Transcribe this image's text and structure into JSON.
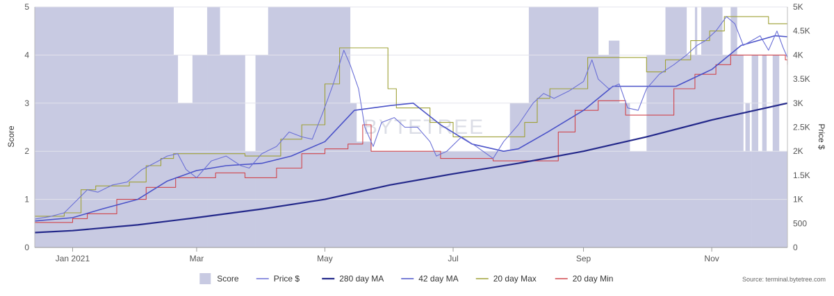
{
  "chart_data": {
    "type": "line",
    "title": "",
    "watermark": "BYTETREE",
    "source": "Source: terminal.bytetree.com",
    "x_tick_labels": [
      {
        "date": "2021-01-01",
        "label": "Jan 2021"
      },
      {
        "date": "2021-03-01",
        "label": "Mar"
      },
      {
        "date": "2021-05-01",
        "label": "May"
      },
      {
        "date": "2021-07-01",
        "label": "Jul"
      },
      {
        "date": "2021-09-01",
        "label": "Sep"
      },
      {
        "date": "2021-11-01",
        "label": "Nov"
      }
    ],
    "xlim": [
      "2020-12-14",
      "2021-12-07"
    ],
    "y_left": {
      "label": "Score",
      "lim": [
        0,
        5
      ],
      "ticks": [
        "0",
        "1",
        "2",
        "3",
        "4",
        "5"
      ]
    },
    "y_right": {
      "label": "Price $",
      "lim": [
        0,
        5000
      ],
      "ticks": [
        "0",
        "500",
        "1K",
        "1.5K",
        "2K",
        "2.5K",
        "3K",
        "3.5K",
        "4K",
        "4.5K",
        "5K"
      ]
    },
    "grid": true,
    "legend_position": "bottom",
    "colors": {
      "score": "#c8cae2",
      "price": "#6a6fd6",
      "ma280": "#23288a",
      "ma42": "#4a52c8",
      "max20": "#9ea035",
      "min20": "#d0454c"
    },
    "legend": [
      {
        "key": "score",
        "label": "Score"
      },
      {
        "key": "price",
        "label": "Price $"
      },
      {
        "key": "ma280",
        "label": "280 day MA"
      },
      {
        "key": "ma42",
        "label": "42 day MA"
      },
      {
        "key": "max20",
        "label": "20 day Max"
      },
      {
        "key": "min20",
        "label": "20 day Min"
      }
    ],
    "series": [
      {
        "name": "Score",
        "axis": "left",
        "kind": "step-area",
        "points": [
          [
            "2020-12-14",
            5
          ],
          [
            "2021-02-18",
            4
          ],
          [
            "2021-02-20",
            3
          ],
          [
            "2021-02-27",
            4
          ],
          [
            "2021-03-06",
            5
          ],
          [
            "2021-03-12",
            4
          ],
          [
            "2021-03-24",
            2
          ],
          [
            "2021-03-29",
            4
          ],
          [
            "2021-04-04",
            5
          ],
          [
            "2021-05-13",
            3
          ],
          [
            "2021-05-16",
            2.2
          ],
          [
            "2021-05-23",
            2
          ],
          [
            "2021-07-28",
            3
          ],
          [
            "2021-08-06",
            5
          ],
          [
            "2021-09-08",
            4
          ],
          [
            "2021-09-13",
            4.3
          ],
          [
            "2021-09-18",
            3
          ],
          [
            "2021-09-23",
            2
          ],
          [
            "2021-10-01",
            4
          ],
          [
            "2021-10-10",
            5
          ],
          [
            "2021-10-20",
            4
          ],
          [
            "2021-10-24",
            5
          ],
          [
            "2021-10-25",
            4
          ],
          [
            "2021-10-27",
            5
          ],
          [
            "2021-11-06",
            4
          ],
          [
            "2021-11-10",
            5
          ],
          [
            "2021-11-13",
            4
          ],
          [
            "2021-11-16",
            2
          ],
          [
            "2021-11-17",
            3
          ],
          [
            "2021-11-19",
            2
          ],
          [
            "2021-11-20",
            4
          ],
          [
            "2021-11-23",
            2
          ],
          [
            "2021-11-25",
            4
          ],
          [
            "2021-11-27",
            2
          ],
          [
            "2021-11-30",
            4
          ],
          [
            "2021-12-03",
            2
          ],
          [
            "2021-12-07",
            2
          ]
        ]
      },
      {
        "name": "Price $",
        "axis": "right",
        "kind": "line",
        "points": [
          [
            "2020-12-14",
            590
          ],
          [
            "2020-12-21",
            640
          ],
          [
            "2020-12-28",
            720
          ],
          [
            "2021-01-03",
            980
          ],
          [
            "2021-01-08",
            1200
          ],
          [
            "2021-01-13",
            1150
          ],
          [
            "2021-01-20",
            1300
          ],
          [
            "2021-01-27",
            1360
          ],
          [
            "2021-02-03",
            1620
          ],
          [
            "2021-02-10",
            1780
          ],
          [
            "2021-02-15",
            1900
          ],
          [
            "2021-02-20",
            1950
          ],
          [
            "2021-02-24",
            1620
          ],
          [
            "2021-03-01",
            1450
          ],
          [
            "2021-03-08",
            1800
          ],
          [
            "2021-03-15",
            1900
          ],
          [
            "2021-03-22",
            1700
          ],
          [
            "2021-03-26",
            1650
          ],
          [
            "2021-04-01",
            1950
          ],
          [
            "2021-04-08",
            2100
          ],
          [
            "2021-04-14",
            2400
          ],
          [
            "2021-04-20",
            2300
          ],
          [
            "2021-04-25",
            2250
          ],
          [
            "2021-04-30",
            2800
          ],
          [
            "2021-05-05",
            3400
          ],
          [
            "2021-05-10",
            4100
          ],
          [
            "2021-05-13",
            3800
          ],
          [
            "2021-05-17",
            3300
          ],
          [
            "2021-05-20",
            2500
          ],
          [
            "2021-05-24",
            2100
          ],
          [
            "2021-05-28",
            2600
          ],
          [
            "2021-06-03",
            2700
          ],
          [
            "2021-06-08",
            2500
          ],
          [
            "2021-06-14",
            2500
          ],
          [
            "2021-06-20",
            2200
          ],
          [
            "2021-06-23",
            1900
          ],
          [
            "2021-06-28",
            2000
          ],
          [
            "2021-07-05",
            2300
          ],
          [
            "2021-07-12",
            2100
          ],
          [
            "2021-07-20",
            1850
          ],
          [
            "2021-07-25",
            2200
          ],
          [
            "2021-08-01",
            2550
          ],
          [
            "2021-08-08",
            3000
          ],
          [
            "2021-08-13",
            3200
          ],
          [
            "2021-08-18",
            3100
          ],
          [
            "2021-08-25",
            3250
          ],
          [
            "2021-09-01",
            3450
          ],
          [
            "2021-09-05",
            3900
          ],
          [
            "2021-09-08",
            3500
          ],
          [
            "2021-09-13",
            3300
          ],
          [
            "2021-09-18",
            3400
          ],
          [
            "2021-09-22",
            2900
          ],
          [
            "2021-09-27",
            2850
          ],
          [
            "2021-10-01",
            3300
          ],
          [
            "2021-10-07",
            3600
          ],
          [
            "2021-10-14",
            3800
          ],
          [
            "2021-10-20",
            4000
          ],
          [
            "2021-10-25",
            4200
          ],
          [
            "2021-10-29",
            4300
          ],
          [
            "2021-11-03",
            4500
          ],
          [
            "2021-11-08",
            4800
          ],
          [
            "2021-11-12",
            4650
          ],
          [
            "2021-11-16",
            4200
          ],
          [
            "2021-11-20",
            4300
          ],
          [
            "2021-11-24",
            4400
          ],
          [
            "2021-11-28",
            4100
          ],
          [
            "2021-12-02",
            4500
          ],
          [
            "2021-12-05",
            4150
          ],
          [
            "2021-12-07",
            3950
          ]
        ]
      },
      {
        "name": "280 day MA",
        "axis": "right",
        "kind": "line",
        "points": [
          [
            "2020-12-14",
            310
          ],
          [
            "2021-01-01",
            350
          ],
          [
            "2021-02-01",
            470
          ],
          [
            "2021-03-01",
            620
          ],
          [
            "2021-04-01",
            800
          ],
          [
            "2021-05-01",
            1000
          ],
          [
            "2021-06-01",
            1300
          ],
          [
            "2021-07-01",
            1530
          ],
          [
            "2021-08-01",
            1750
          ],
          [
            "2021-09-01",
            2000
          ],
          [
            "2021-10-01",
            2300
          ],
          [
            "2021-11-01",
            2650
          ],
          [
            "2021-12-07",
            3000
          ]
        ]
      },
      {
        "name": "42 day MA",
        "axis": "right",
        "kind": "line",
        "points": [
          [
            "2020-12-14",
            550
          ],
          [
            "2021-01-01",
            620
          ],
          [
            "2021-01-15",
            800
          ],
          [
            "2021-02-01",
            1000
          ],
          [
            "2021-02-15",
            1380
          ],
          [
            "2021-03-01",
            1600
          ],
          [
            "2021-03-15",
            1700
          ],
          [
            "2021-04-01",
            1750
          ],
          [
            "2021-04-15",
            1900
          ],
          [
            "2021-05-01",
            2200
          ],
          [
            "2021-05-15",
            2850
          ],
          [
            "2021-06-01",
            2950
          ],
          [
            "2021-06-12",
            3000
          ],
          [
            "2021-06-25",
            2550
          ],
          [
            "2021-07-10",
            2150
          ],
          [
            "2021-07-25",
            2000
          ],
          [
            "2021-08-01",
            2050
          ],
          [
            "2021-08-15",
            2400
          ],
          [
            "2021-09-01",
            2850
          ],
          [
            "2021-09-15",
            3350
          ],
          [
            "2021-09-25",
            3350
          ],
          [
            "2021-10-15",
            3350
          ],
          [
            "2021-11-01",
            3700
          ],
          [
            "2021-11-15",
            4200
          ],
          [
            "2021-12-01",
            4400
          ],
          [
            "2021-12-07",
            4380
          ]
        ]
      },
      {
        "name": "20 day Max",
        "axis": "right",
        "kind": "step",
        "points": [
          [
            "2020-12-14",
            650
          ],
          [
            "2020-12-28",
            720
          ],
          [
            "2021-01-05",
            1200
          ],
          [
            "2021-01-12",
            1280
          ],
          [
            "2021-01-28",
            1360
          ],
          [
            "2021-02-05",
            1700
          ],
          [
            "2021-02-12",
            1850
          ],
          [
            "2021-02-18",
            1950
          ],
          [
            "2021-03-24",
            1900
          ],
          [
            "2021-04-10",
            2250
          ],
          [
            "2021-04-20",
            2550
          ],
          [
            "2021-05-01",
            3400
          ],
          [
            "2021-05-08",
            4150
          ],
          [
            "2021-05-31",
            3300
          ],
          [
            "2021-06-04",
            2900
          ],
          [
            "2021-06-20",
            2600
          ],
          [
            "2021-07-01",
            2300
          ],
          [
            "2021-08-04",
            2600
          ],
          [
            "2021-08-10",
            3100
          ],
          [
            "2021-08-16",
            3300
          ],
          [
            "2021-09-03",
            3950
          ],
          [
            "2021-10-01",
            3650
          ],
          [
            "2021-10-10",
            3900
          ],
          [
            "2021-10-22",
            4300
          ],
          [
            "2021-10-31",
            4500
          ],
          [
            "2021-11-07",
            4800
          ],
          [
            "2021-11-28",
            4650
          ],
          [
            "2021-12-07",
            4650
          ]
        ]
      },
      {
        "name": "20 day Min",
        "axis": "right",
        "kind": "step",
        "points": [
          [
            "2020-12-14",
            520
          ],
          [
            "2021-01-01",
            600
          ],
          [
            "2021-01-08",
            700
          ],
          [
            "2021-01-22",
            1000
          ],
          [
            "2021-02-05",
            1250
          ],
          [
            "2021-02-19",
            1450
          ],
          [
            "2021-03-10",
            1550
          ],
          [
            "2021-03-24",
            1450
          ],
          [
            "2021-04-08",
            1650
          ],
          [
            "2021-04-20",
            1950
          ],
          [
            "2021-05-01",
            2050
          ],
          [
            "2021-05-12",
            2150
          ],
          [
            "2021-05-19",
            2550
          ],
          [
            "2021-05-23",
            2000
          ],
          [
            "2021-06-25",
            1850
          ],
          [
            "2021-07-20",
            1800
          ],
          [
            "2021-08-20",
            2400
          ],
          [
            "2021-08-28",
            2850
          ],
          [
            "2021-09-08",
            3050
          ],
          [
            "2021-09-21",
            2750
          ],
          [
            "2021-10-14",
            3300
          ],
          [
            "2021-10-24",
            3600
          ],
          [
            "2021-11-03",
            3800
          ],
          [
            "2021-11-10",
            4000
          ],
          [
            "2021-12-06",
            3900
          ],
          [
            "2021-12-07",
            3800
          ]
        ]
      }
    ]
  }
}
